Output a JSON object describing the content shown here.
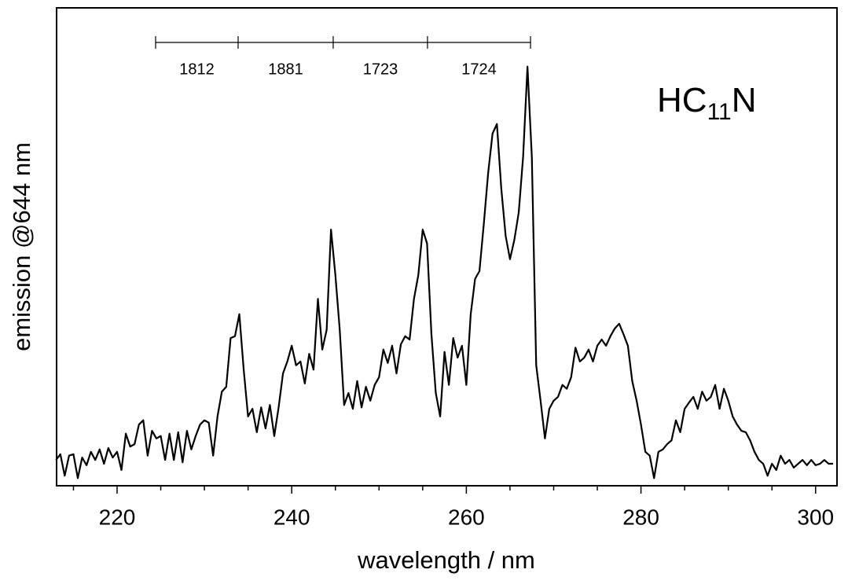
{
  "chart_data": {
    "type": "line",
    "x_label": "wavelength / nm",
    "y_label": "emission @644 nm",
    "annotation_parts": [
      {
        "text": "HC"
      },
      {
        "text": "11",
        "sub": true
      },
      {
        "text": "N"
      }
    ],
    "progression": {
      "positions": [
        224.41,
        233.86,
        244.75,
        255.55,
        267.35
      ],
      "labels": [
        "1812",
        "1881",
        "1723",
        "1724"
      ]
    },
    "xlim": [
      213.07,
      302.45
    ],
    "xticks": [
      220,
      240,
      260,
      280,
      300
    ],
    "xticks_minor": [
      215,
      225,
      230,
      235,
      245,
      250,
      255,
      265,
      270,
      275,
      285,
      290,
      295
    ],
    "ylim": [
      0,
      100
    ],
    "x": [
      213,
      213.5,
      214,
      214.5,
      215,
      215.5,
      216,
      216.5,
      217,
      217.5,
      218,
      218.5,
      219,
      219.5,
      220,
      220.5,
      221,
      221.5,
      222,
      222.5,
      223,
      223.5,
      224,
      224.5,
      225,
      225.5,
      226,
      226.5,
      227,
      227.5,
      228,
      228.5,
      229,
      229.5,
      230,
      230.5,
      231,
      231.5,
      232,
      232.5,
      233,
      233.5,
      234,
      234.5,
      235,
      235.5,
      236,
      236.5,
      237,
      237.5,
      238,
      238.5,
      239,
      239.5,
      240,
      240.5,
      241,
      241.5,
      242,
      242.5,
      243,
      243.5,
      244,
      244.5,
      245,
      245.5,
      246,
      246.5,
      247,
      247.5,
      248,
      248.5,
      249,
      249.5,
      250,
      250.5,
      251,
      251.5,
      252,
      252.5,
      253,
      253.5,
      254,
      254.5,
      255,
      255.5,
      256,
      256.5,
      257,
      257.5,
      258,
      258.5,
      259,
      259.5,
      260,
      260.5,
      261,
      261.5,
      262,
      262.5,
      263,
      263.5,
      264,
      264.5,
      265,
      265.5,
      266,
      266.5,
      267,
      267.5,
      268,
      268.5,
      269,
      269.5,
      270,
      270.5,
      271,
      271.5,
      272,
      272.5,
      273,
      273.5,
      274,
      274.5,
      275,
      275.5,
      276,
      276.5,
      277,
      277.5,
      278,
      278.5,
      279,
      279.5,
      280,
      280.5,
      281,
      281.5,
      282,
      282.5,
      283,
      283.5,
      284,
      284.5,
      285,
      285.5,
      286,
      286.5,
      287,
      287.5,
      288,
      288.5,
      289,
      289.5,
      290,
      290.5,
      291,
      291.5,
      292,
      292.5,
      293,
      293.5,
      294,
      294.5,
      295,
      295.5,
      296,
      296.5,
      297,
      297.5,
      298,
      298.5,
      299,
      299.5,
      300,
      300.5,
      301,
      301.5,
      302
    ],
    "series": [
      {
        "color": "#000000",
        "values": [
          5.4,
          6.6,
          2.1,
          6.3,
          6.6,
          1.6,
          5.9,
          4.3,
          7.1,
          5.4,
          7.6,
          4.6,
          7.9,
          5.9,
          7.1,
          3.3,
          10.9,
          8.2,
          8.7,
          12.8,
          13.7,
          6.3,
          11.5,
          9.9,
          10.4,
          5.4,
          10.9,
          5.4,
          11.2,
          4.9,
          11.5,
          7.6,
          10.4,
          12.8,
          13.7,
          13.2,
          6.3,
          14.5,
          19.7,
          20.7,
          30.9,
          31.3,
          35.9,
          24.3,
          14.5,
          16.1,
          11.2,
          16.4,
          12.0,
          16.9,
          10.4,
          16.4,
          23.5,
          26.0,
          29.3,
          25.2,
          26.0,
          21.4,
          27.6,
          24.3,
          39.1,
          28.5,
          32.6,
          53.6,
          44.1,
          32.6,
          16.9,
          19.4,
          16.1,
          21.9,
          16.4,
          20.7,
          17.8,
          21.1,
          22.7,
          28.5,
          25.7,
          29.3,
          23.5,
          29.6,
          31.3,
          30.6,
          39.1,
          44.1,
          53.6,
          50.7,
          31.7,
          19.4,
          14.5,
          28.0,
          21.1,
          30.9,
          26.8,
          29.3,
          21.1,
          35.9,
          43.3,
          44.9,
          54.8,
          65.5,
          73.7,
          75.7,
          62.2,
          52.3,
          47.4,
          51.5,
          57.2,
          68.8,
          87.7,
          68.8,
          25.2,
          17.8,
          9.9,
          16.1,
          17.8,
          18.6,
          21.1,
          20.3,
          22.7,
          28.9,
          26.0,
          26.8,
          28.5,
          26.0,
          29.3,
          30.6,
          29.3,
          31.3,
          32.9,
          33.9,
          31.7,
          29.3,
          21.9,
          17.8,
          12.8,
          7.1,
          6.3,
          1.6,
          7.1,
          7.6,
          8.7,
          9.5,
          13.7,
          11.2,
          16.1,
          17.4,
          18.6,
          16.1,
          19.7,
          17.8,
          18.6,
          21.1,
          16.1,
          20.3,
          17.8,
          14.5,
          12.8,
          11.5,
          11.2,
          9.5,
          7.1,
          5.4,
          4.6,
          2.1,
          4.6,
          3.3,
          6.3,
          4.6,
          5.4,
          3.8,
          4.6,
          5.4,
          4.3,
          5.4,
          4.3,
          4.6,
          5.4,
          4.6,
          4.6
        ]
      }
    ]
  }
}
